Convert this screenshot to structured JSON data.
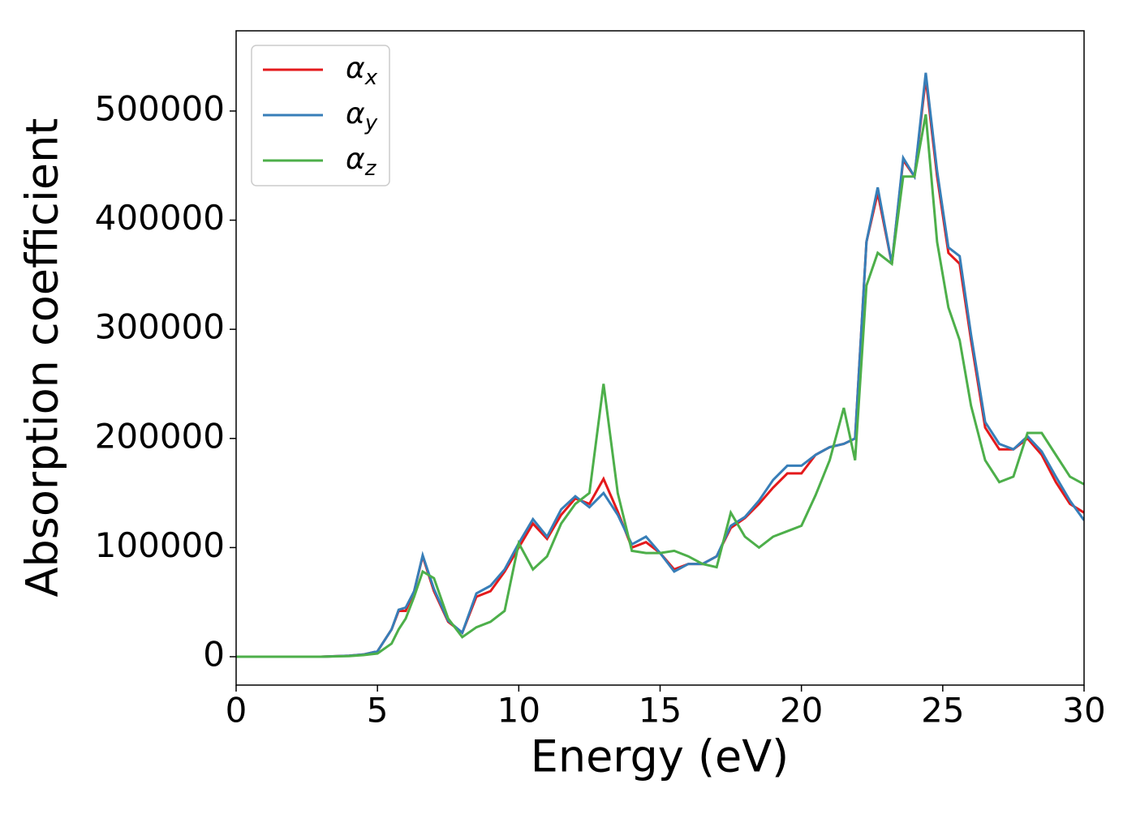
{
  "chart_data": {
    "type": "line",
    "xlabel": "Energy (eV)",
    "ylabel": "Absorption coefficient",
    "x": [
      0,
      1,
      2,
      3,
      4,
      4.5,
      5,
      5.5,
      5.75,
      6,
      6.3,
      6.6,
      7,
      7.5,
      8,
      8.5,
      9,
      9.5,
      10,
      10.5,
      11,
      11.5,
      12,
      12.5,
      13,
      13.5,
      14,
      14.5,
      15,
      15.5,
      16,
      16.5,
      17,
      17.5,
      18,
      18.5,
      19,
      19.5,
      20,
      20.5,
      21,
      21.5,
      21.9,
      22.3,
      22.7,
      23.2,
      23.6,
      24,
      24.4,
      24.8,
      25.2,
      25.6,
      26,
      26.5,
      27,
      27.5,
      28,
      28.5,
      29,
      29.5,
      30
    ],
    "series": [
      {
        "name": "αx",
        "color": "#e41a1c",
        "values": [
          0,
          0,
          0,
          0,
          1000,
          2000,
          5000,
          25000,
          42000,
          42000,
          60000,
          92000,
          60000,
          32000,
          22000,
          55000,
          60000,
          78000,
          100000,
          122000,
          108000,
          130000,
          145000,
          140000,
          163000,
          133000,
          100000,
          105000,
          95000,
          80000,
          85000,
          85000,
          92000,
          118000,
          127000,
          140000,
          155000,
          168000,
          168000,
          185000,
          192000,
          195000,
          200000,
          380000,
          425000,
          360000,
          455000,
          440000,
          530000,
          440000,
          370000,
          360000,
          290000,
          210000,
          190000,
          190000,
          200000,
          185000,
          160000,
          140000,
          132000
        ]
      },
      {
        "name": "αy",
        "color": "#377eb8",
        "values": [
          0,
          0,
          0,
          0,
          1000,
          2000,
          5000,
          25000,
          43000,
          45000,
          60000,
          93000,
          62000,
          33000,
          22000,
          58000,
          65000,
          80000,
          104000,
          126000,
          110000,
          135000,
          147000,
          137000,
          150000,
          130000,
          103000,
          110000,
          95000,
          78000,
          85000,
          85000,
          92000,
          120000,
          128000,
          143000,
          162000,
          175000,
          175000,
          185000,
          192000,
          195000,
          200000,
          380000,
          430000,
          360000,
          457000,
          440000,
          535000,
          445000,
          375000,
          367000,
          295000,
          215000,
          195000,
          190000,
          202000,
          188000,
          165000,
          143000,
          125000
        ]
      },
      {
        "name": "αz",
        "color": "#4daf4a",
        "values": [
          0,
          0,
          0,
          0,
          500,
          1500,
          3000,
          12000,
          25000,
          35000,
          55000,
          78000,
          72000,
          35000,
          18000,
          27000,
          32000,
          42000,
          104000,
          80000,
          92000,
          122000,
          140000,
          150000,
          250000,
          150000,
          97000,
          95000,
          95000,
          97000,
          92000,
          85000,
          82000,
          132000,
          110000,
          100000,
          110000,
          115000,
          120000,
          148000,
          180000,
          228000,
          180000,
          340000,
          370000,
          360000,
          440000,
          440000,
          497000,
          380000,
          320000,
          290000,
          230000,
          180000,
          160000,
          165000,
          205000,
          205000,
          185000,
          165000,
          158000
        ]
      }
    ],
    "xlim": [
      0,
      30
    ],
    "xticks": [
      0,
      5,
      10,
      15,
      20,
      25,
      30
    ],
    "ylim": [
      -26000,
      573500
    ],
    "yticks": [
      0,
      100000,
      200000,
      300000,
      400000,
      500000
    ],
    "legend": "upper left"
  }
}
